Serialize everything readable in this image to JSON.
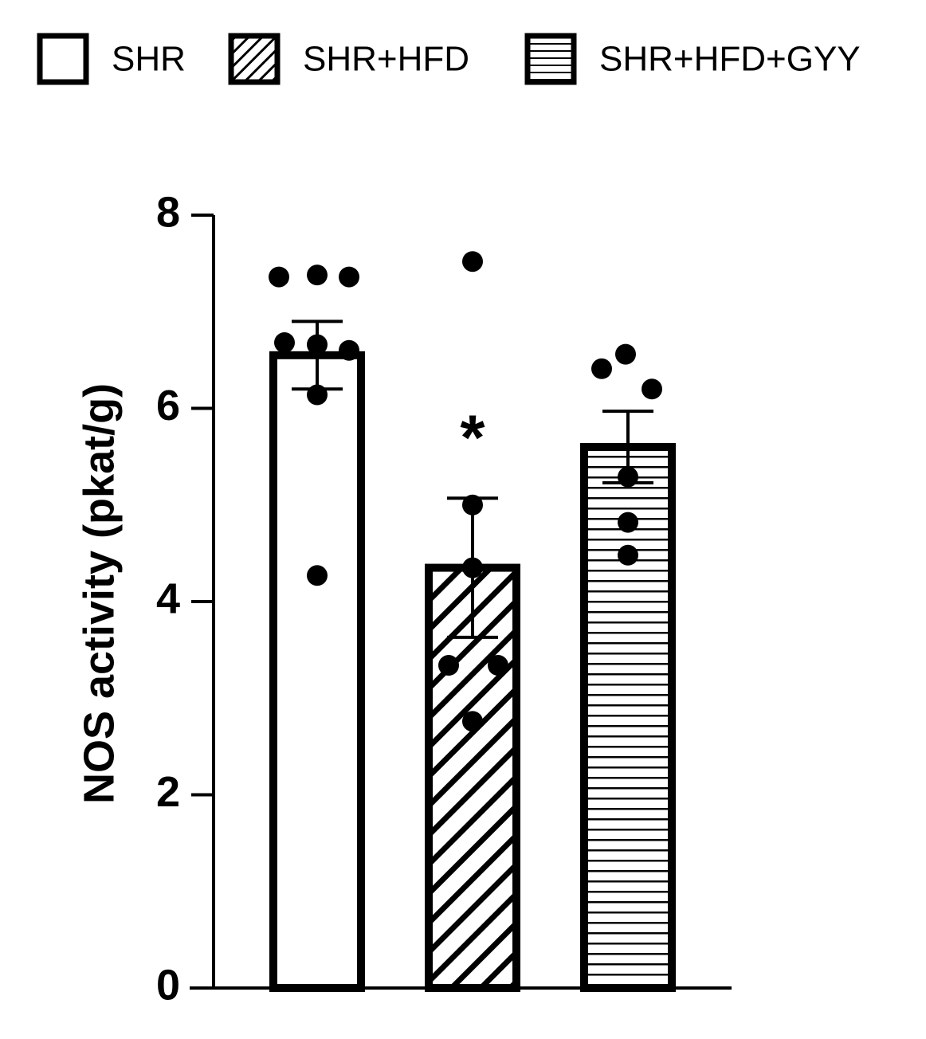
{
  "chart_data": {
    "type": "bar",
    "y_label": "NOS activity (pkat/g)",
    "ylim": [
      0,
      8
    ],
    "yticks": [
      0,
      2,
      4,
      6,
      8
    ],
    "color": "#000000",
    "series": [
      {
        "name": "SHR",
        "pattern": "none",
        "values": [
          6.55
        ],
        "errors": [
          0.35
        ],
        "points": [
          7.36,
          7.38,
          7.36,
          6.68,
          6.66,
          6.6,
          6.14,
          4.27
        ]
      },
      {
        "name": "SHR+HFD",
        "pattern": "diagonal",
        "values": [
          4.35
        ],
        "errors": [
          0.72
        ],
        "annotation": "*",
        "points": [
          7.52,
          5.0,
          4.35,
          3.34,
          3.34,
          2.76
        ]
      },
      {
        "name": "SHR+HFD+GYY",
        "pattern": "horizontal",
        "values": [
          5.6
        ],
        "errors": [
          0.37
        ],
        "points": [
          6.41,
          6.56,
          6.2,
          5.29,
          4.82,
          4.48
        ]
      }
    ]
  }
}
